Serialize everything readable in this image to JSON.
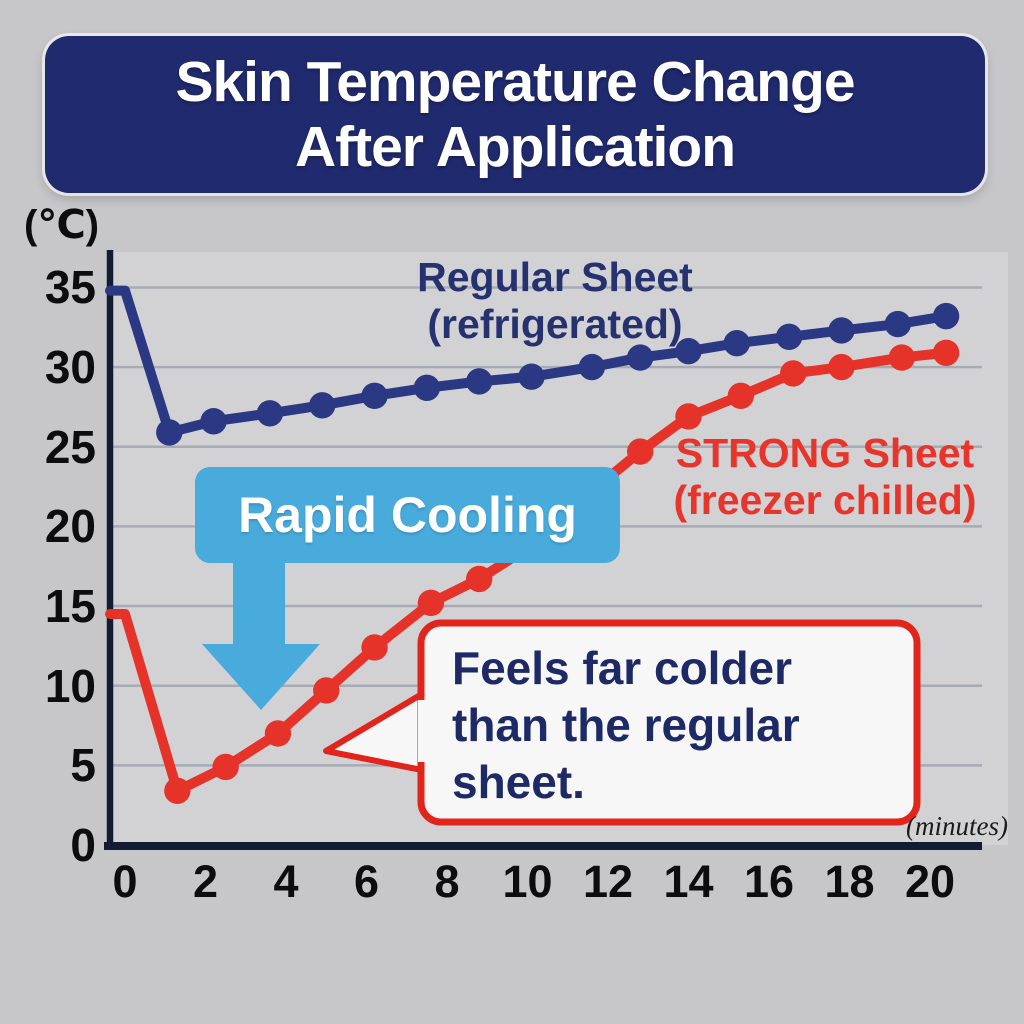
{
  "title": {
    "text": "Skin Temperature Change After Application",
    "line1": "Skin Temperature Change",
    "line2": "After Application",
    "bg": "#202a6e",
    "color": "#ffffff"
  },
  "axes": {
    "y_unit": "(℃)",
    "x_unit": "(minutes)"
  },
  "legend": {
    "regular": {
      "line1": "Regular Sheet",
      "line2": "(refrigerated)",
      "color": "#26316f"
    },
    "strong": {
      "line1": "STRONG Sheet",
      "line2": "(freezer chilled)",
      "color": "#e8352b"
    }
  },
  "annotations": {
    "rapid_cooling": {
      "label": "Rapid Cooling",
      "bg": "#48abdc",
      "color": "#ffffff"
    },
    "callout": {
      "text": "Feels far colder than the regular sheet.",
      "line1": "Feels far colder",
      "line2": "than the regular",
      "line3": "sheet.",
      "bg": "#f7f7f8",
      "border": "#e1241c",
      "color": "#1e2a66"
    }
  },
  "chart_data": {
    "type": "line",
    "title": "Skin Temperature Change After Application",
    "x_label": "(minutes)",
    "y_label": "(℃)",
    "x_ticks": [
      0,
      2,
      4,
      6,
      8,
      10,
      12,
      14,
      16,
      18,
      20
    ],
    "y_ticks": [
      0,
      5,
      10,
      15,
      20,
      25,
      30,
      35
    ],
    "xlim": [
      0,
      21.7
    ],
    "ylim": [
      0,
      37.3
    ],
    "grid": "horizontal",
    "legend_position": "on-chart",
    "series": [
      {
        "name": "Regular Sheet (refrigerated)",
        "color": "#2b3883",
        "x": [
          0,
          1.1,
          2.2,
          3.6,
          4.9,
          6.2,
          7.5,
          8.8,
          10.1,
          11.6,
          12.8,
          14.0,
          15.2,
          16.5,
          17.8,
          19.2,
          20.4
        ],
        "y": [
          34.8,
          25.9,
          26.6,
          27.1,
          27.6,
          28.2,
          28.7,
          29.1,
          29.4,
          30.0,
          30.6,
          31.0,
          31.5,
          31.9,
          32.3,
          32.7,
          33.2
        ]
      },
      {
        "name": "STRONG Sheet (freezer chilled)",
        "color": "#e6332a",
        "x": [
          0,
          1.3,
          2.5,
          3.8,
          5.0,
          6.2,
          7.6,
          8.8,
          10.1,
          11.4,
          12.8,
          14.0,
          15.3,
          16.6,
          17.8,
          19.3,
          20.4
        ],
        "y": [
          14.5,
          3.4,
          4.9,
          7.0,
          9.7,
          12.4,
          15.2,
          16.7,
          18.8,
          21.8,
          24.7,
          26.9,
          28.2,
          29.6,
          30.0,
          30.6,
          30.9
        ]
      }
    ]
  }
}
